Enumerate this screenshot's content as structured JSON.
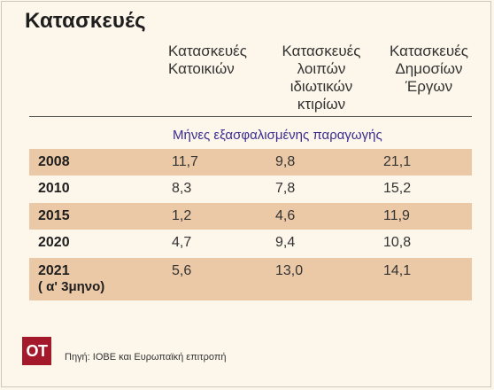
{
  "title": "Κατασκευές",
  "columns": [
    "Κατασκευές\nΚατοικιών",
    "Κατασκευές\nλοιπών\nιδιωτικών\nκτιρίων",
    "Κατασκευές\nΔημοσίων\nΈργων"
  ],
  "subtitle": "Μήνες εξασφαλισμένης παραγωγής",
  "rows": [
    {
      "year": "2008",
      "year_sub": "",
      "values": [
        "11,7",
        "9,8",
        "21,1"
      ]
    },
    {
      "year": "2010",
      "year_sub": "",
      "values": [
        "8,3",
        "7,8",
        "15,2"
      ]
    },
    {
      "year": "2015",
      "year_sub": "",
      "values": [
        "1,2",
        "4,6",
        "11,9"
      ]
    },
    {
      "year": "2020",
      "year_sub": "",
      "values": [
        "4,7",
        "9,4",
        "10,8"
      ]
    },
    {
      "year": "2021",
      "year_sub": "( α' 3μηνο)",
      "values": [
        "5,6",
        "13,0",
        "14,1"
      ]
    }
  ],
  "logo_text": "ΟΤ",
  "source": "Πηγή: ΙΟΒΕ και Ευρωπαϊκή επιτροπή",
  "colors": {
    "background": "#fdf6ea",
    "row_shade": "#ecc9a6",
    "subtitle": "#3a2d8f",
    "logo": "#a3182b"
  }
}
